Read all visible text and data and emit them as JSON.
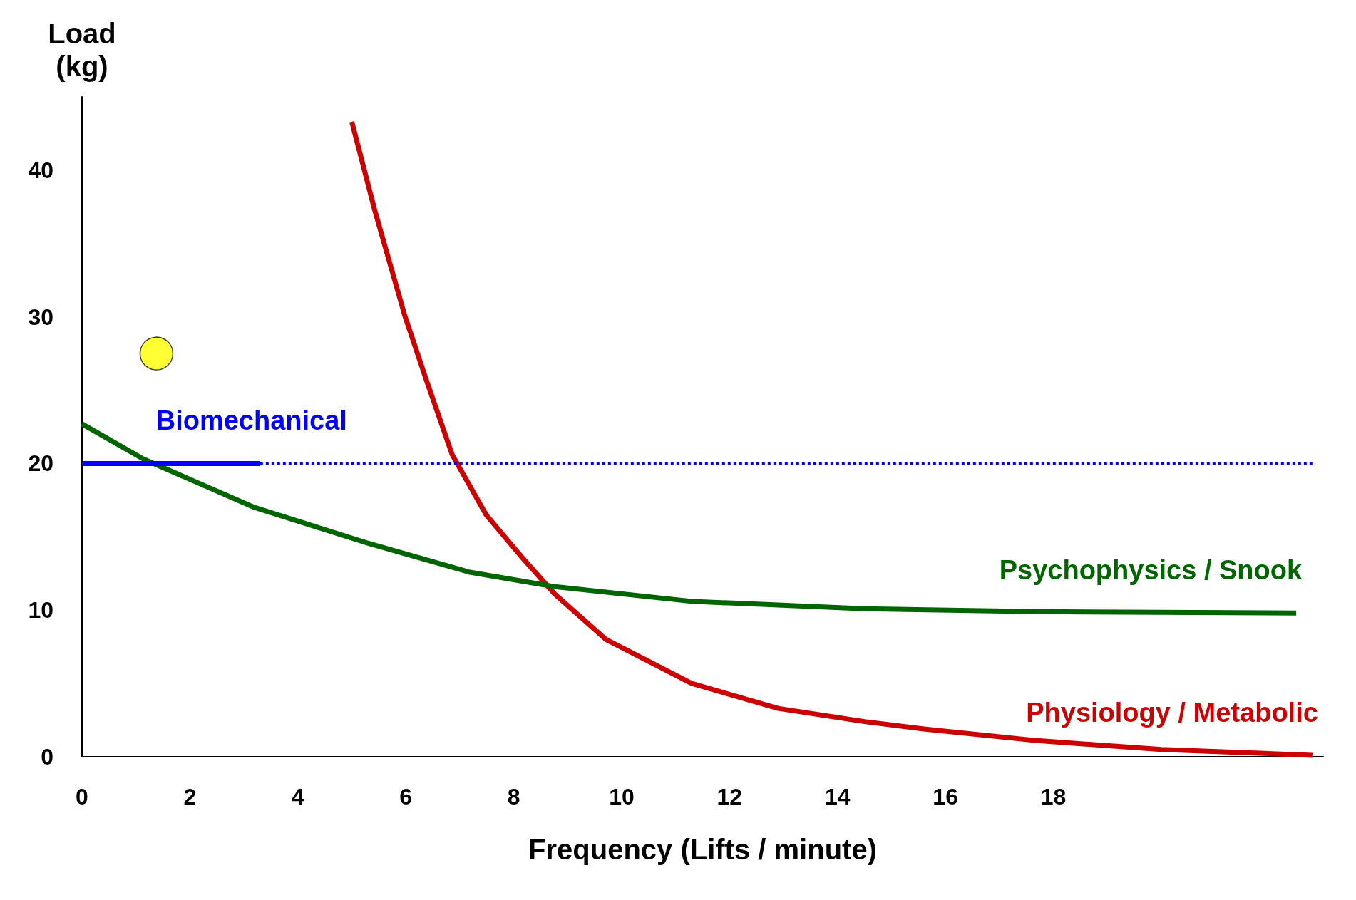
{
  "chart_data": {
    "type": "line",
    "xlabel": "Frequency (Lifts / minute)",
    "ylabel": "Load\n(kg)",
    "xlim": [
      0,
      23
    ],
    "xticks": [
      0,
      2,
      4,
      6,
      8,
      10,
      12,
      14,
      16,
      18
    ],
    "ylim": [
      0,
      45
    ],
    "yticks": [
      0,
      10,
      20,
      30,
      40
    ],
    "grid": false,
    "series": [
      {
        "name": "Physiology / Metabolic",
        "color": "#cc0000",
        "x": [
          5.0,
          5.43,
          5.98,
          6.38,
          6.86,
          7.49,
          8.13,
          8.76,
          9.71,
          11.3,
          12.9,
          14.5,
          15.6,
          17.7,
          20.0,
          22.8
        ],
        "values": [
          43.3,
          37.2,
          30.1,
          25.7,
          20.6,
          16.5,
          13.7,
          11.1,
          8.0,
          5.0,
          3.3,
          2.4,
          1.9,
          1.1,
          0.5,
          0.1
        ]
      },
      {
        "name": "Psychophysics / Snook",
        "color": "#006400",
        "x": [
          0,
          1.14,
          3.2,
          5.27,
          7.17,
          8.76,
          11.3,
          14.5,
          17.7,
          22.5
        ],
        "values": [
          22.7,
          20.3,
          17.0,
          14.6,
          12.6,
          11.6,
          10.6,
          10.1,
          9.9,
          9.8
        ]
      },
      {
        "name": "Biomechanical",
        "color": "#0000ff",
        "x": [
          0,
          3.3
        ],
        "values": [
          20,
          20
        ],
        "line_style": "solid"
      },
      {
        "color": "#0000ff",
        "x": [
          3.3,
          22.8
        ],
        "values": [
          20,
          20
        ],
        "line_style": "dotted"
      },
      {
        "type": "scatter",
        "color": "#ffff00",
        "marker": "circle",
        "x": [
          1.38
        ],
        "values": [
          27.5
        ]
      }
    ]
  }
}
